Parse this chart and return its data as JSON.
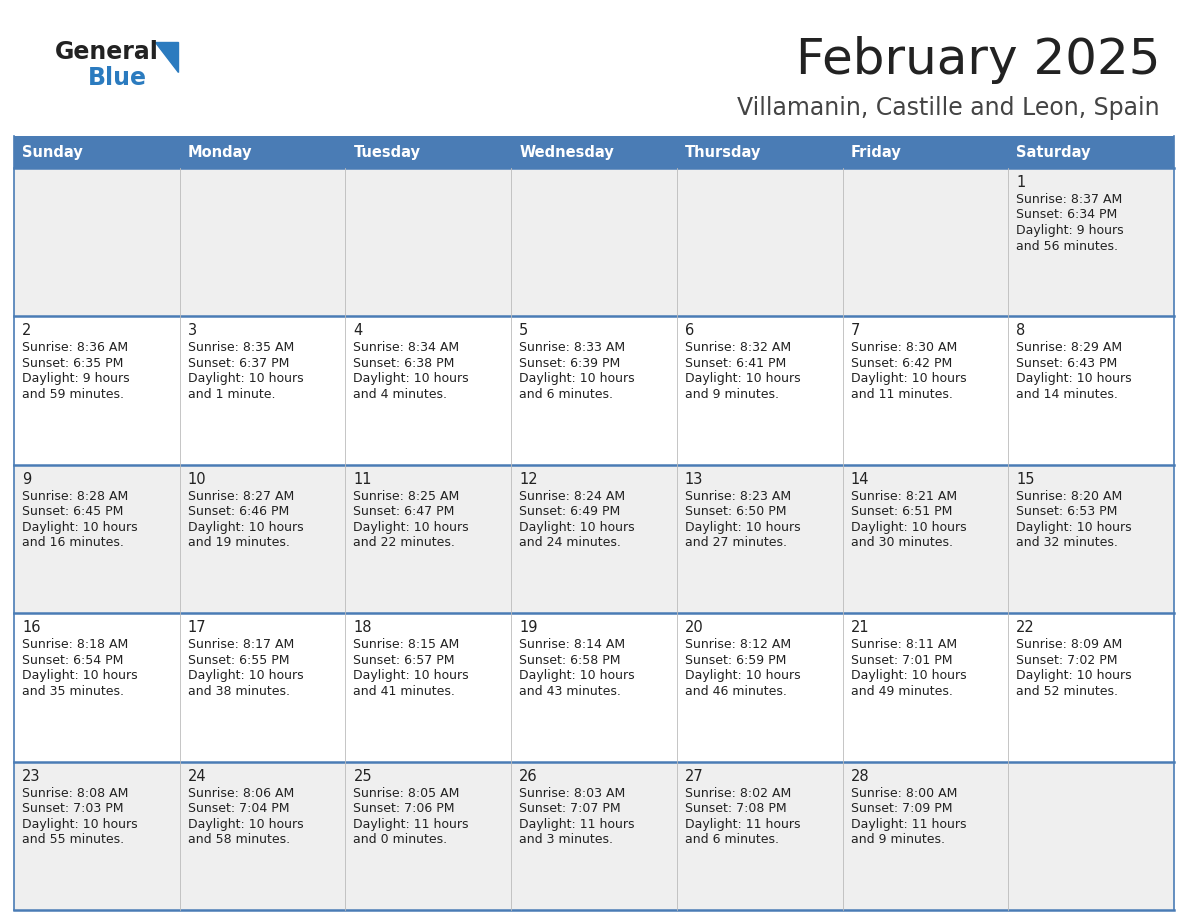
{
  "title": "February 2025",
  "subtitle": "Villamanin, Castille and Leon, Spain",
  "days_of_week": [
    "Sunday",
    "Monday",
    "Tuesday",
    "Wednesday",
    "Thursday",
    "Friday",
    "Saturday"
  ],
  "header_bg": "#4a7cb5",
  "header_text": "#ffffff",
  "row_bg_even": "#efefef",
  "row_bg_odd": "#ffffff",
  "separator_color": "#4a7cb5",
  "cell_text_color": "#222222",
  "title_color": "#222222",
  "subtitle_color": "#444444",
  "logo_general_color": "#222222",
  "logo_blue_color": "#2b7bbf",
  "logo_triangle_color": "#2b7bbf",
  "calendar_data": [
    [
      {
        "day": "",
        "sunrise": "",
        "sunset": "",
        "daylight": ""
      },
      {
        "day": "",
        "sunrise": "",
        "sunset": "",
        "daylight": ""
      },
      {
        "day": "",
        "sunrise": "",
        "sunset": "",
        "daylight": ""
      },
      {
        "day": "",
        "sunrise": "",
        "sunset": "",
        "daylight": ""
      },
      {
        "day": "",
        "sunrise": "",
        "sunset": "",
        "daylight": ""
      },
      {
        "day": "",
        "sunrise": "",
        "sunset": "",
        "daylight": ""
      },
      {
        "day": "1",
        "sunrise": "8:37 AM",
        "sunset": "6:34 PM",
        "daylight": "9 hours\nand 56 minutes."
      }
    ],
    [
      {
        "day": "2",
        "sunrise": "8:36 AM",
        "sunset": "6:35 PM",
        "daylight": "9 hours\nand 59 minutes."
      },
      {
        "day": "3",
        "sunrise": "8:35 AM",
        "sunset": "6:37 PM",
        "daylight": "10 hours\nand 1 minute."
      },
      {
        "day": "4",
        "sunrise": "8:34 AM",
        "sunset": "6:38 PM",
        "daylight": "10 hours\nand 4 minutes."
      },
      {
        "day": "5",
        "sunrise": "8:33 AM",
        "sunset": "6:39 PM",
        "daylight": "10 hours\nand 6 minutes."
      },
      {
        "day": "6",
        "sunrise": "8:32 AM",
        "sunset": "6:41 PM",
        "daylight": "10 hours\nand 9 minutes."
      },
      {
        "day": "7",
        "sunrise": "8:30 AM",
        "sunset": "6:42 PM",
        "daylight": "10 hours\nand 11 minutes."
      },
      {
        "day": "8",
        "sunrise": "8:29 AM",
        "sunset": "6:43 PM",
        "daylight": "10 hours\nand 14 minutes."
      }
    ],
    [
      {
        "day": "9",
        "sunrise": "8:28 AM",
        "sunset": "6:45 PM",
        "daylight": "10 hours\nand 16 minutes."
      },
      {
        "day": "10",
        "sunrise": "8:27 AM",
        "sunset": "6:46 PM",
        "daylight": "10 hours\nand 19 minutes."
      },
      {
        "day": "11",
        "sunrise": "8:25 AM",
        "sunset": "6:47 PM",
        "daylight": "10 hours\nand 22 minutes."
      },
      {
        "day": "12",
        "sunrise": "8:24 AM",
        "sunset": "6:49 PM",
        "daylight": "10 hours\nand 24 minutes."
      },
      {
        "day": "13",
        "sunrise": "8:23 AM",
        "sunset": "6:50 PM",
        "daylight": "10 hours\nand 27 minutes."
      },
      {
        "day": "14",
        "sunrise": "8:21 AM",
        "sunset": "6:51 PM",
        "daylight": "10 hours\nand 30 minutes."
      },
      {
        "day": "15",
        "sunrise": "8:20 AM",
        "sunset": "6:53 PM",
        "daylight": "10 hours\nand 32 minutes."
      }
    ],
    [
      {
        "day": "16",
        "sunrise": "8:18 AM",
        "sunset": "6:54 PM",
        "daylight": "10 hours\nand 35 minutes."
      },
      {
        "day": "17",
        "sunrise": "8:17 AM",
        "sunset": "6:55 PM",
        "daylight": "10 hours\nand 38 minutes."
      },
      {
        "day": "18",
        "sunrise": "8:15 AM",
        "sunset": "6:57 PM",
        "daylight": "10 hours\nand 41 minutes."
      },
      {
        "day": "19",
        "sunrise": "8:14 AM",
        "sunset": "6:58 PM",
        "daylight": "10 hours\nand 43 minutes."
      },
      {
        "day": "20",
        "sunrise": "8:12 AM",
        "sunset": "6:59 PM",
        "daylight": "10 hours\nand 46 minutes."
      },
      {
        "day": "21",
        "sunrise": "8:11 AM",
        "sunset": "7:01 PM",
        "daylight": "10 hours\nand 49 minutes."
      },
      {
        "day": "22",
        "sunrise": "8:09 AM",
        "sunset": "7:02 PM",
        "daylight": "10 hours\nand 52 minutes."
      }
    ],
    [
      {
        "day": "23",
        "sunrise": "8:08 AM",
        "sunset": "7:03 PM",
        "daylight": "10 hours\nand 55 minutes."
      },
      {
        "day": "24",
        "sunrise": "8:06 AM",
        "sunset": "7:04 PM",
        "daylight": "10 hours\nand 58 minutes."
      },
      {
        "day": "25",
        "sunrise": "8:05 AM",
        "sunset": "7:06 PM",
        "daylight": "11 hours\nand 0 minutes."
      },
      {
        "day": "26",
        "sunrise": "8:03 AM",
        "sunset": "7:07 PM",
        "daylight": "11 hours\nand 3 minutes."
      },
      {
        "day": "27",
        "sunrise": "8:02 AM",
        "sunset": "7:08 PM",
        "daylight": "11 hours\nand 6 minutes."
      },
      {
        "day": "28",
        "sunrise": "8:00 AM",
        "sunset": "7:09 PM",
        "daylight": "11 hours\nand 9 minutes."
      },
      {
        "day": "",
        "sunrise": "",
        "sunset": "",
        "daylight": ""
      }
    ]
  ]
}
